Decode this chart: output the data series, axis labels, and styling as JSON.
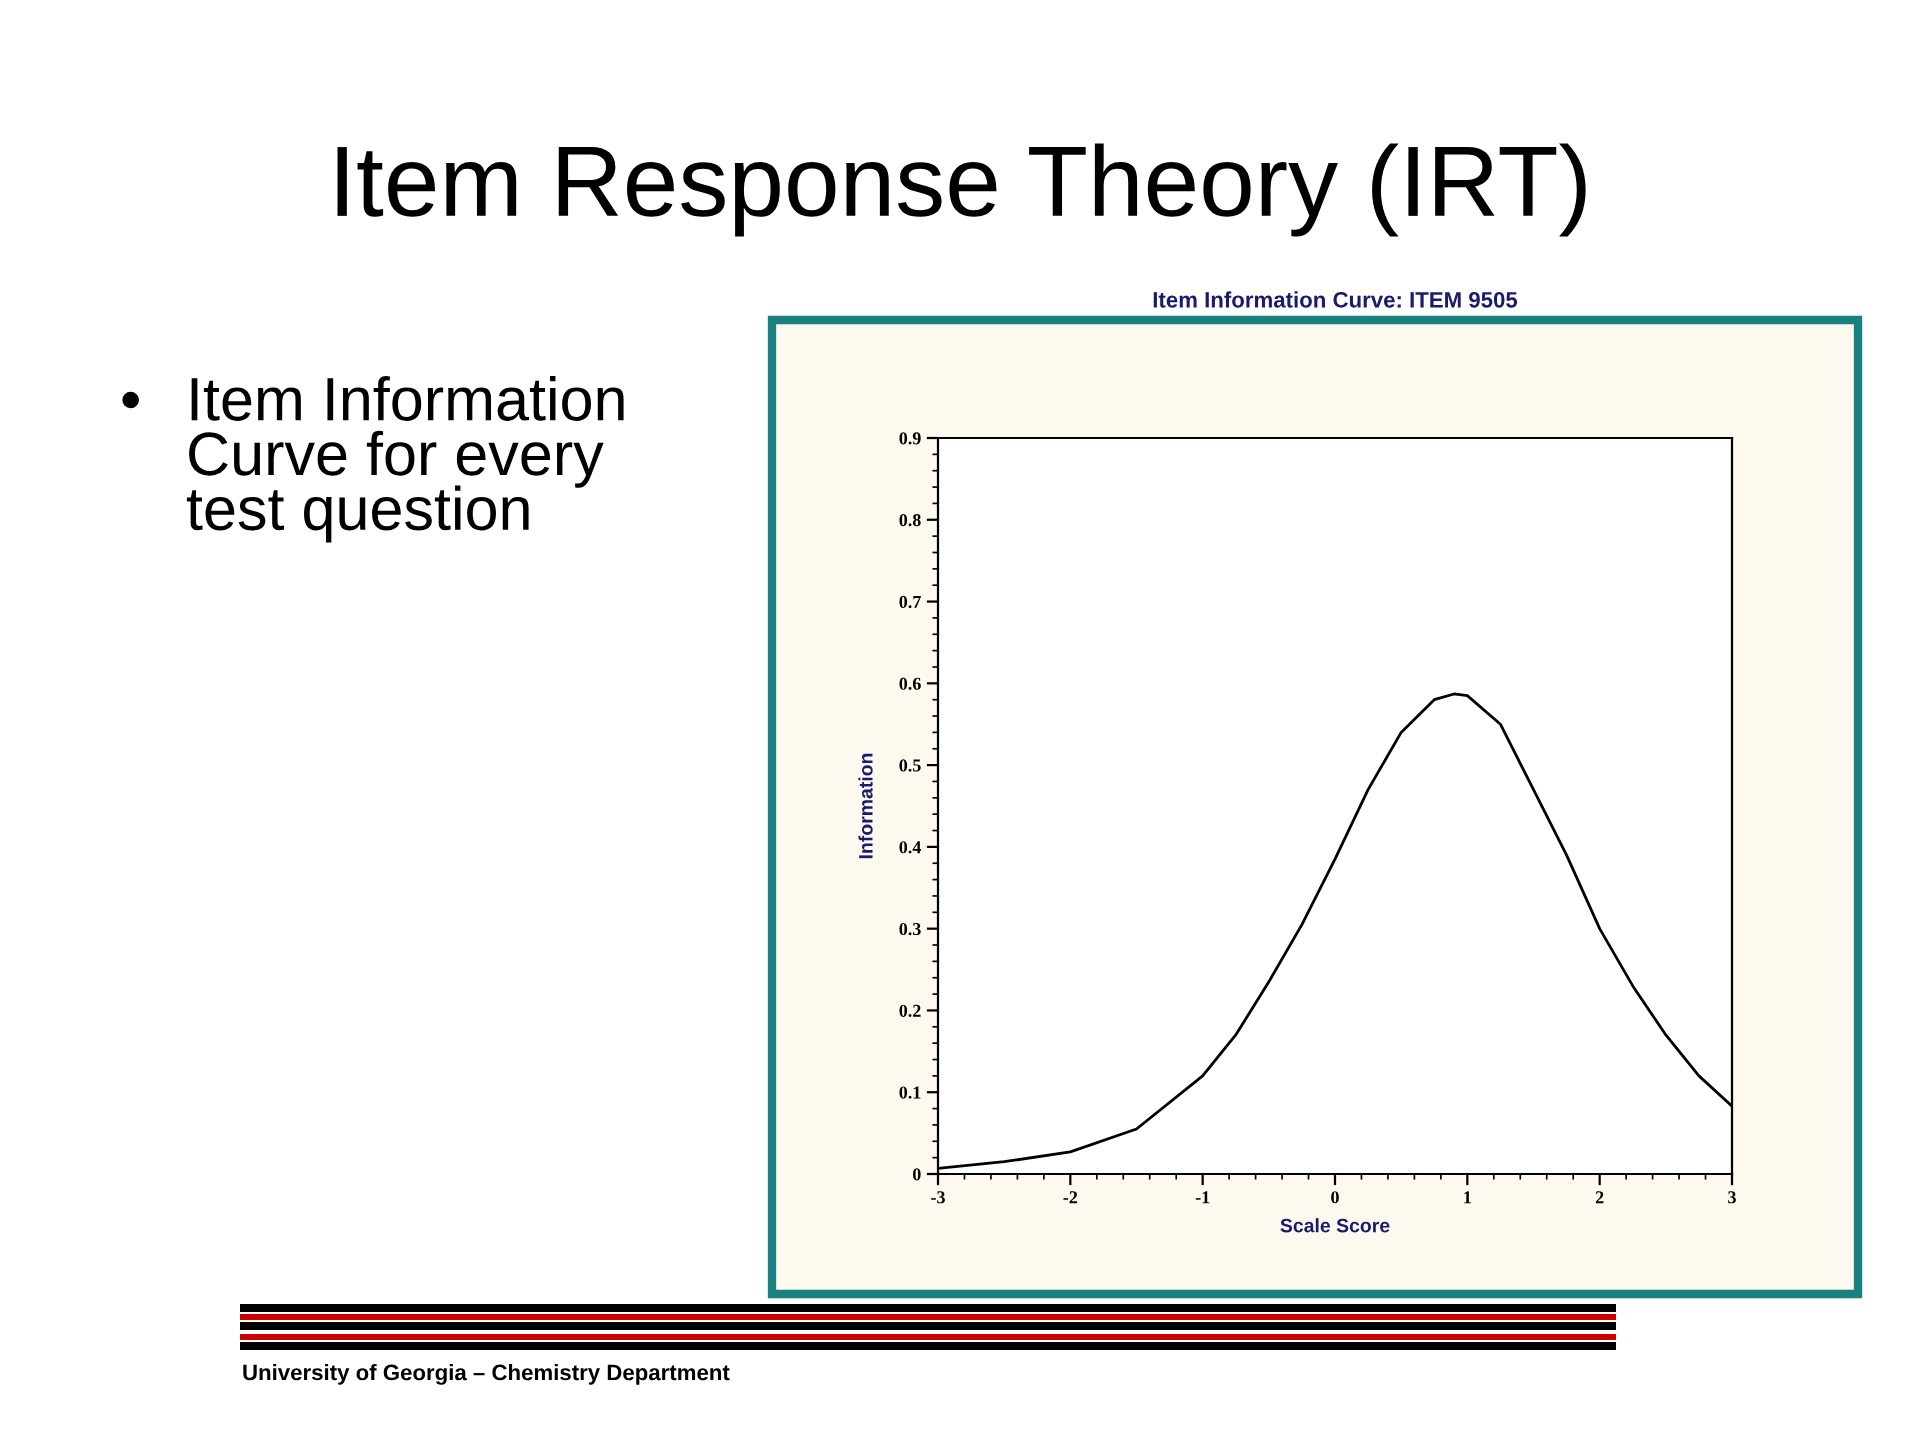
{
  "chart_data": {
    "type": "line",
    "title": "Item Response Theory (IRT)",
    "subtitle": "Item Information Curve: ITEM 9505",
    "xlabel": "Scale Score",
    "ylabel": "Information",
    "annotations": [
      "•",
      "Item Information\nCurve for every\ntest question",
      "University of Georgia – Chemistry Department"
    ],
    "x": [
      -3,
      -2.5,
      -2,
      -1.5,
      -1,
      -0.75,
      -0.5,
      -0.25,
      0,
      0.25,
      0.5,
      0.75,
      0.9,
      1.0,
      1.25,
      1.5,
      1.75,
      2,
      2.25,
      2.5,
      2.75,
      3
    ],
    "series": [
      {
        "color": "#000000",
        "values": [
          0.007,
          0.015,
          0.027,
          0.055,
          0.12,
          0.17,
          0.235,
          0.305,
          0.385,
          0.47,
          0.54,
          0.58,
          0.587,
          0.585,
          0.55,
          0.47,
          0.39,
          0.3,
          0.23,
          0.17,
          0.12,
          0.083
        ]
      }
    ],
    "xlim": [
      -3,
      3
    ],
    "xticks": [
      -3,
      -2,
      -1,
      0,
      1,
      2,
      3
    ],
    "ylim": [
      0,
      0.9
    ],
    "yticks": [
      0,
      0.1,
      0.2,
      0.3,
      0.4,
      0.5,
      0.6,
      0.7,
      0.8,
      0.9
    ],
    "grid": false,
    "legend": false,
    "marker": "none",
    "line_style": "solid"
  }
}
